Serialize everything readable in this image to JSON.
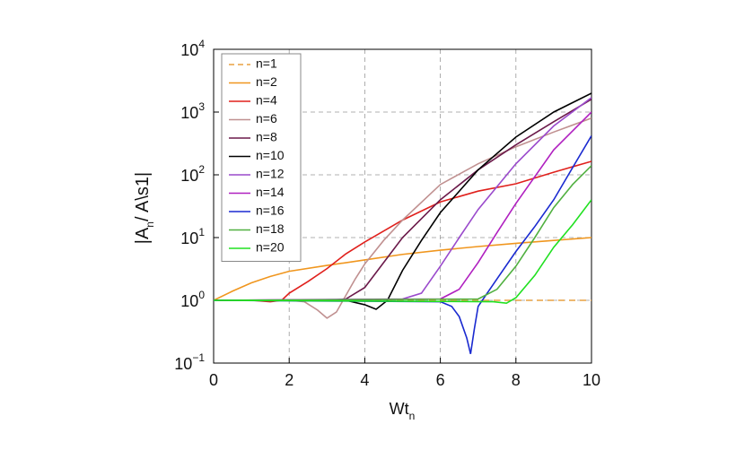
{
  "chart_data": {
    "type": "line",
    "log_y": true,
    "grid": true,
    "legend": "upper-left",
    "xlabel": [
      "Wt",
      "n"
    ],
    "ylabel": [
      "|A",
      "n",
      "/ A\\s1|"
    ],
    "xlim": [
      0,
      10
    ],
    "xticks": [
      0,
      2,
      4,
      6,
      8,
      10
    ],
    "ylim": [
      0.1,
      10000
    ],
    "yticks": [
      {
        "value": 0.1,
        "label": "10^−1"
      },
      {
        "value": 1,
        "label": "10^0"
      },
      {
        "value": 10,
        "label": "10^1"
      },
      {
        "value": 100,
        "label": "10^2"
      },
      {
        "value": 1000,
        "label": "10^3"
      },
      {
        "value": 10000,
        "label": "10^4"
      }
    ],
    "series": [
      {
        "name": "n=1",
        "color": "#e8a040",
        "dash": true,
        "x": [
          0,
          10
        ],
        "values": [
          1,
          1
        ]
      },
      {
        "name": "n=2",
        "color": "#f0961e",
        "x": [
          0,
          0.5,
          1,
          1.5,
          2,
          3,
          4,
          5,
          6,
          7,
          8,
          9,
          10
        ],
        "values": [
          1,
          1.4,
          1.9,
          2.4,
          2.9,
          3.6,
          4.4,
          5.4,
          6.3,
          7.2,
          8.1,
          9.0,
          10
        ]
      },
      {
        "name": "n=4",
        "color": "#e0201c",
        "x": [
          0,
          1,
          1.5,
          1.8,
          2,
          2.5,
          3,
          3.5,
          4,
          5,
          6,
          7,
          8,
          9,
          10
        ],
        "values": [
          1,
          1,
          0.95,
          1,
          1.3,
          2,
          3.2,
          5.5,
          8.5,
          19,
          37,
          55,
          72,
          110,
          164
        ]
      },
      {
        "name": "n=6",
        "color": "#c09090",
        "x": [
          0,
          2,
          2.4,
          2.75,
          3,
          3.25,
          3.5,
          3.75,
          4,
          4.5,
          5,
          6,
          7,
          8,
          9,
          10
        ],
        "values": [
          1,
          1,
          0.95,
          0.7,
          0.52,
          0.65,
          1.2,
          2.2,
          3.8,
          9,
          19,
          70,
          150,
          280,
          480,
          800
        ]
      },
      {
        "name": "n=8",
        "color": "#6b1a4a",
        "x": [
          0,
          3,
          3.5,
          4,
          4.5,
          5,
          6,
          7,
          8,
          9,
          10
        ],
        "values": [
          1,
          1,
          1.05,
          1.6,
          4,
          10,
          40,
          120,
          300,
          700,
          1600
        ]
      },
      {
        "name": "n=10",
        "color": "#000000",
        "x": [
          0,
          3.5,
          4,
          4.3,
          4.6,
          5,
          5.5,
          6,
          7,
          8,
          9,
          10
        ],
        "values": [
          1,
          1,
          0.85,
          0.72,
          1,
          3,
          9,
          25,
          120,
          400,
          1000,
          2000
        ]
      },
      {
        "name": "n=12",
        "color": "#9a4acc",
        "x": [
          0,
          5,
          5.5,
          6,
          6.5,
          7,
          8,
          9,
          10
        ],
        "values": [
          1,
          1.05,
          1.3,
          3.5,
          10,
          28,
          150,
          600,
          1700
        ]
      },
      {
        "name": "n=14",
        "color": "#b020c0",
        "x": [
          0,
          6,
          6.5,
          7,
          7.5,
          8,
          9,
          10
        ],
        "values": [
          1,
          1.05,
          1.5,
          4,
          12,
          35,
          250,
          1000
        ]
      },
      {
        "name": "n=16",
        "color": "#1a2ad0",
        "x": [
          0,
          6,
          6.3,
          6.5,
          6.7,
          6.8,
          6.9,
          7,
          7.5,
          8,
          8.5,
          9,
          9.5,
          10
        ],
        "values": [
          1,
          0.95,
          0.8,
          0.55,
          0.25,
          0.14,
          0.35,
          0.8,
          2.2,
          6,
          15,
          40,
          130,
          420
        ]
      },
      {
        "name": "n=18",
        "color": "#50b040",
        "x": [
          0,
          7,
          7.5,
          8,
          8.5,
          9,
          9.5,
          10
        ],
        "values": [
          1,
          1.05,
          1.5,
          3.5,
          10,
          30,
          70,
          140
        ]
      },
      {
        "name": "n=20",
        "color": "#20e020",
        "x": [
          0,
          7.4,
          7.75,
          8,
          8.5,
          9,
          9.5,
          10
        ],
        "values": [
          1,
          0.95,
          0.9,
          1.1,
          2.5,
          7,
          16,
          40
        ]
      }
    ]
  }
}
